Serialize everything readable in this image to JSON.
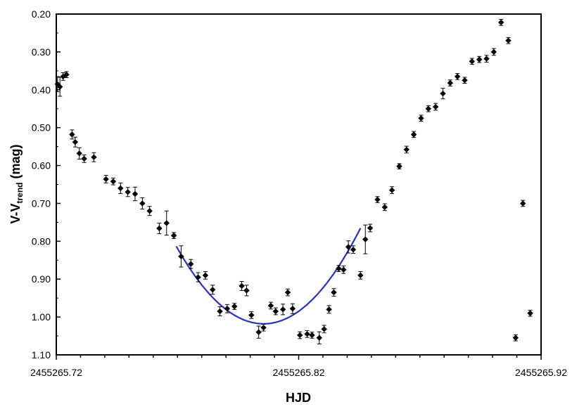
{
  "chart_data": {
    "type": "scatter",
    "title": "",
    "xlabel": "HJD",
    "ylabel": {
      "main": "V-V",
      "sub": "trend",
      "suffix": " (mag)"
    },
    "xlim": [
      2455265.72,
      2455265.92
    ],
    "ylim": [
      0.2,
      1.1
    ],
    "y_inverted": true,
    "x_ticks": [
      "2455265.72",
      "2455265.82",
      "2455265.92"
    ],
    "x_tick_values": [
      2455265.72,
      2455265.82,
      2455265.92
    ],
    "y_ticks": [
      "0.20",
      "0.30",
      "0.40",
      "0.50",
      "0.60",
      "0.70",
      "0.80",
      "0.90",
      "1.00",
      "1.10"
    ],
    "y_tick_values": [
      0.2,
      0.3,
      0.4,
      0.5,
      0.6,
      0.7,
      0.8,
      0.9,
      1.0,
      1.1
    ],
    "grid": false,
    "legend": "none",
    "marker_color": "#000000",
    "series": [
      {
        "marker": "diamond",
        "x": [
          2455265.7205,
          2455265.7215,
          2455265.7228,
          2455265.7242,
          2455265.7265,
          2455265.7278,
          2455265.7295,
          2455265.7315,
          2455265.7355,
          2455265.7405,
          2455265.7435,
          2455265.7465,
          2455265.7495,
          2455265.7525,
          2455265.7555,
          2455265.7585,
          2455265.7625,
          2455265.7655,
          2455265.7685,
          2455265.7715,
          2455265.7755,
          2455265.7785,
          2455265.7815,
          2455265.7845,
          2455265.7875,
          2455265.7905,
          2455265.7935,
          2455265.7965,
          2455265.7985,
          2455265.8005,
          2455265.8035,
          2455265.8055,
          2455265.8085,
          2455265.8105,
          2455265.8135,
          2455265.8155,
          2455265.8175,
          2455265.8205,
          2455265.8235,
          2455265.8255,
          2455265.8285,
          2455265.8305,
          2455265.8325,
          2455265.8345,
          2455265.8365,
          2455265.8385,
          2455265.8405,
          2455265.8425,
          2455265.8455,
          2455265.8475,
          2455265.8495,
          2455265.8525,
          2455265.8555,
          2455265.8585,
          2455265.8615,
          2455265.8645,
          2455265.8675,
          2455265.8705,
          2455265.8735,
          2455265.8765,
          2455265.8795,
          2455265.8825,
          2455265.8855,
          2455265.8885,
          2455265.8915,
          2455265.8945,
          2455265.8975,
          2455265.9005,
          2455265.9035,
          2455265.9065,
          2455265.9095,
          2455265.9125,
          2455265.9155
        ],
        "y": [
          0.385,
          0.392,
          0.365,
          0.36,
          0.518,
          0.538,
          0.568,
          0.582,
          0.578,
          0.636,
          0.642,
          0.66,
          0.67,
          0.675,
          0.7,
          0.72,
          0.766,
          0.752,
          0.785,
          0.84,
          0.86,
          0.895,
          0.89,
          0.928,
          0.985,
          0.978,
          0.972,
          0.918,
          0.93,
          0.995,
          1.04,
          1.028,
          0.97,
          0.985,
          0.98,
          0.935,
          0.978,
          1.048,
          1.045,
          1.048,
          1.055,
          1.032,
          0.98,
          0.935,
          0.872,
          0.875,
          0.815,
          0.822,
          0.89,
          0.795,
          0.765,
          0.69,
          0.71,
          0.665,
          0.602,
          0.558,
          0.518,
          0.475,
          0.45,
          0.445,
          0.41,
          0.382,
          0.365,
          0.375,
          0.325,
          0.32,
          0.318,
          0.3,
          0.222,
          0.27,
          1.055,
          0.7,
          0.99
        ],
        "yerr": [
          0.02,
          0.025,
          0.01,
          0.008,
          0.012,
          0.013,
          0.015,
          0.01,
          0.012,
          0.01,
          0.009,
          0.014,
          0.012,
          0.018,
          0.015,
          0.012,
          0.014,
          0.032,
          0.008,
          0.028,
          0.012,
          0.012,
          0.01,
          0.012,
          0.012,
          0.011,
          0.008,
          0.012,
          0.014,
          0.009,
          0.016,
          0.009,
          0.009,
          0.009,
          0.014,
          0.009,
          0.013,
          0.009,
          0.009,
          0.008,
          0.016,
          0.01,
          0.01,
          0.01,
          0.008,
          0.01,
          0.016,
          0.01,
          0.01,
          0.038,
          0.01,
          0.008,
          0.009,
          0.009,
          0.007,
          0.009,
          0.008,
          0.008,
          0.008,
          0.009,
          0.014,
          0.008,
          0.008,
          0.008,
          0.008,
          0.008,
          0.009,
          0.009,
          0.008,
          0.008,
          0.008,
          0.008,
          0.008
        ]
      }
    ],
    "fit": {
      "type": "parabola",
      "color": "#2233cc",
      "x_start": 2455265.7695,
      "x_end": 2455265.8455,
      "x_min": 2455265.8055,
      "y_min": 1.018,
      "coef": 158.0
    }
  }
}
